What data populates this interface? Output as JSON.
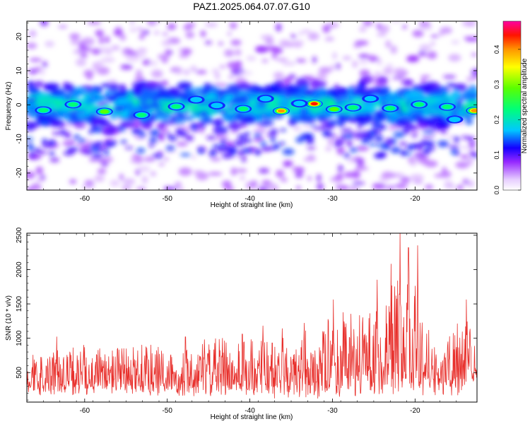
{
  "title": "PAZ1.2025.064.07.07.G10",
  "chart_data": [
    {
      "type": "heatmap",
      "xlabel": "Height of straight line (km)",
      "ylabel": "Frequency (Hz)",
      "xlim": [
        -67,
        -12.5
      ],
      "ylim": [
        -25,
        24.5
      ],
      "x_ticks": [
        -60,
        -50,
        -40,
        -30,
        -20
      ],
      "y_ticks": [
        -20,
        -10,
        0,
        10,
        20
      ],
      "colorbar": {
        "label": "Normalized spectral amplitude",
        "range": [
          0,
          0.48
        ],
        "ticks": [
          0.0,
          0.1,
          0.2,
          0.3,
          0.4
        ]
      },
      "spectral_band": {
        "center_hz": 0,
        "halfwidth_hz": 5
      },
      "blobs": [
        {
          "x": -32.2,
          "y": 0.3,
          "v": 0.47
        },
        {
          "x": -36.2,
          "y": -1.8,
          "v": 0.43
        },
        {
          "x": -12.8,
          "y": -1.7,
          "v": 0.42
        },
        {
          "x": -29.8,
          "y": -1.3,
          "v": 0.33
        },
        {
          "x": -57.6,
          "y": -2.0,
          "v": 0.3
        },
        {
          "x": -48.9,
          "y": -0.5,
          "v": 0.28
        },
        {
          "x": -61.4,
          "y": 0.1,
          "v": 0.27
        },
        {
          "x": -40.8,
          "y": -1.2,
          "v": 0.26
        },
        {
          "x": -23.0,
          "y": -1.0,
          "v": 0.27
        },
        {
          "x": -19.5,
          "y": 0.1,
          "v": 0.26
        },
        {
          "x": -27.5,
          "y": -0.8,
          "v": 0.25
        },
        {
          "x": -44.0,
          "y": -0.2,
          "v": 0.22
        },
        {
          "x": -53.1,
          "y": -3.0,
          "v": 0.24
        },
        {
          "x": -65.0,
          "y": -1.6,
          "v": 0.25
        },
        {
          "x": -16.1,
          "y": -0.6,
          "v": 0.23
        },
        {
          "x": -34.0,
          "y": 0.4,
          "v": 0.22
        },
        {
          "x": -25.4,
          "y": 1.8,
          "v": 0.2
        },
        {
          "x": -15.2,
          "y": -4.3,
          "v": 0.19
        },
        {
          "x": -38.1,
          "y": 1.8,
          "v": 0.18
        },
        {
          "x": -46.5,
          "y": 1.5,
          "v": 0.19
        }
      ]
    },
    {
      "type": "line",
      "xlabel": "Height of straight line (km)",
      "ylabel": "SNR (10 * v/v)",
      "xlim": [
        -67,
        -12.5
      ],
      "ylim": [
        70,
        2530
      ],
      "x_ticks": [
        -60,
        -50,
        -40,
        -30,
        -20
      ],
      "y_ticks": [
        500,
        1000,
        1500,
        2000,
        2500
      ],
      "color": "#e8302c",
      "envelope": [
        {
          "x": -67,
          "lo": 150,
          "hi": 700
        },
        {
          "x": -60,
          "lo": 170,
          "hi": 850
        },
        {
          "x": -50,
          "lo": 150,
          "hi": 850
        },
        {
          "x": -45,
          "lo": 150,
          "hi": 900
        },
        {
          "x": -40,
          "lo": 120,
          "hi": 1050
        },
        {
          "x": -35,
          "lo": 120,
          "hi": 950
        },
        {
          "x": -30,
          "lo": 100,
          "hi": 1250
        },
        {
          "x": -25,
          "lo": 150,
          "hi": 1400
        },
        {
          "x": -22,
          "lo": 200,
          "hi": 1900
        },
        {
          "x": -20,
          "lo": 150,
          "hi": 1650
        },
        {
          "x": -18,
          "lo": 150,
          "hi": 1050
        },
        {
          "x": -15,
          "lo": 150,
          "hi": 1000
        },
        {
          "x": -12.5,
          "lo": 350,
          "hi": 1300
        }
      ],
      "peaks": [
        {
          "x": -21.8,
          "y": 2530
        },
        {
          "x": -19.7,
          "y": 2350
        },
        {
          "x": -20.8,
          "y": 2320
        },
        {
          "x": -22.9,
          "y": 2080
        },
        {
          "x": -24.6,
          "y": 1850
        },
        {
          "x": -29.9,
          "y": 1560
        },
        {
          "x": -13.8,
          "y": 1560
        },
        {
          "x": -33.4,
          "y": 1220
        },
        {
          "x": -36.1,
          "y": 1140
        },
        {
          "x": -38.4,
          "y": 1180
        },
        {
          "x": -40.9,
          "y": 1060
        },
        {
          "x": -43.3,
          "y": 1000
        },
        {
          "x": -45.5,
          "y": 980
        },
        {
          "x": -47.8,
          "y": 1020
        },
        {
          "x": -63.4,
          "y": 1020
        },
        {
          "x": -60.1,
          "y": 900
        },
        {
          "x": -52.5,
          "y": 860
        },
        {
          "x": -14.9,
          "y": 1210
        },
        {
          "x": -27.4,
          "y": 1130
        }
      ]
    }
  ]
}
